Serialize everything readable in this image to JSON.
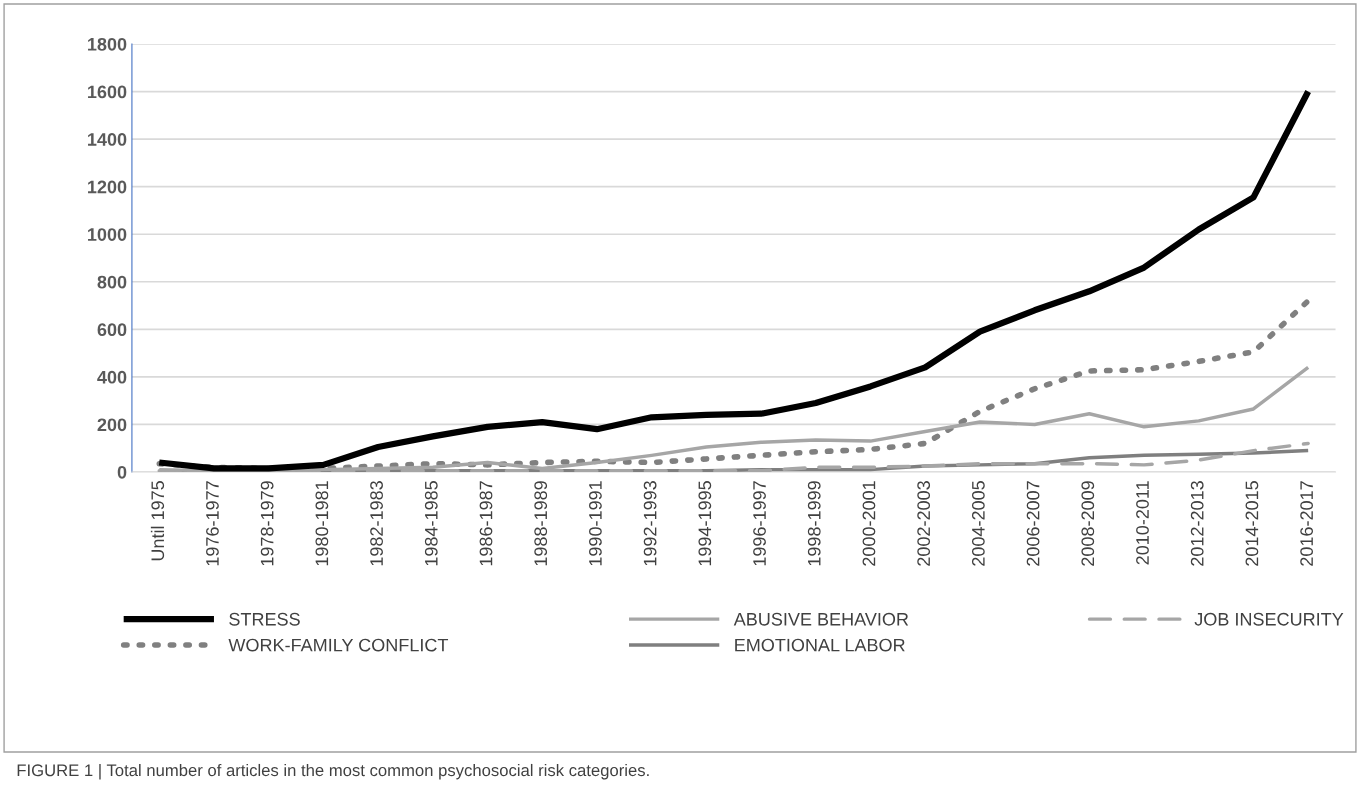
{
  "chart_data": {
    "type": "line",
    "categories": [
      "Until 1975",
      "1976-1977",
      "1978-1979",
      "1980-1981",
      "1982-1983",
      "1984-1985",
      "1986-1987",
      "1988-1989",
      "1990-1991",
      "1992-1993",
      "1994-1995",
      "1996-1997",
      "1998-1999",
      "2000-2001",
      "2002-2003",
      "2004-2005",
      "2006-2007",
      "2008-2009",
      "2010-2011",
      "2012-2013",
      "2014-2015",
      "2016-2017"
    ],
    "series": [
      {
        "name": "STRESS",
        "color": "#000000",
        "line_style": "solid",
        "values": [
          40,
          15,
          15,
          30,
          105,
          150,
          190,
          210,
          180,
          230,
          240,
          245,
          290,
          360,
          440,
          590,
          680,
          760,
          860,
          1020,
          1155,
          1600
        ]
      },
      {
        "name": "ABUSIVE BEHAVIOR",
        "color": "#a6a6a6",
        "line_style": "solid",
        "values": [
          10,
          5,
          5,
          10,
          15,
          20,
          40,
          15,
          40,
          70,
          105,
          125,
          135,
          130,
          170,
          210,
          200,
          245,
          190,
          215,
          265,
          440
        ]
      },
      {
        "name": "JOB INSECURITY",
        "color": "#a6a6a6",
        "line_style": "dashed",
        "values": [
          5,
          5,
          5,
          5,
          5,
          5,
          5,
          5,
          5,
          5,
          5,
          5,
          20,
          20,
          25,
          35,
          35,
          35,
          30,
          50,
          90,
          120
        ]
      },
      {
        "name": "WORK-FAMILY CONFLICT",
        "color": "#808080",
        "line_style": "dotted",
        "values": [
          35,
          20,
          15,
          15,
          25,
          35,
          30,
          40,
          45,
          40,
          55,
          70,
          85,
          95,
          120,
          255,
          350,
          425,
          430,
          465,
          505,
          720
        ]
      },
      {
        "name": "EMOTIONAL LABOR",
        "color": "#7f7f7f",
        "line_style": "solid",
        "values": [
          0,
          0,
          0,
          0,
          5,
          5,
          5,
          5,
          5,
          5,
          5,
          10,
          10,
          10,
          25,
          30,
          35,
          60,
          70,
          75,
          80,
          90
        ]
      }
    ],
    "ylim": [
      0,
      1800
    ],
    "yticks": [
      0,
      200,
      400,
      600,
      800,
      1000,
      1200,
      1400,
      1600,
      1800
    ],
    "grid": "y",
    "legend": "bottom",
    "marker": "none",
    "annotations": [
      "FIGURE 1 | Total number of articles in the most common psychosocial risk categories."
    ]
  }
}
